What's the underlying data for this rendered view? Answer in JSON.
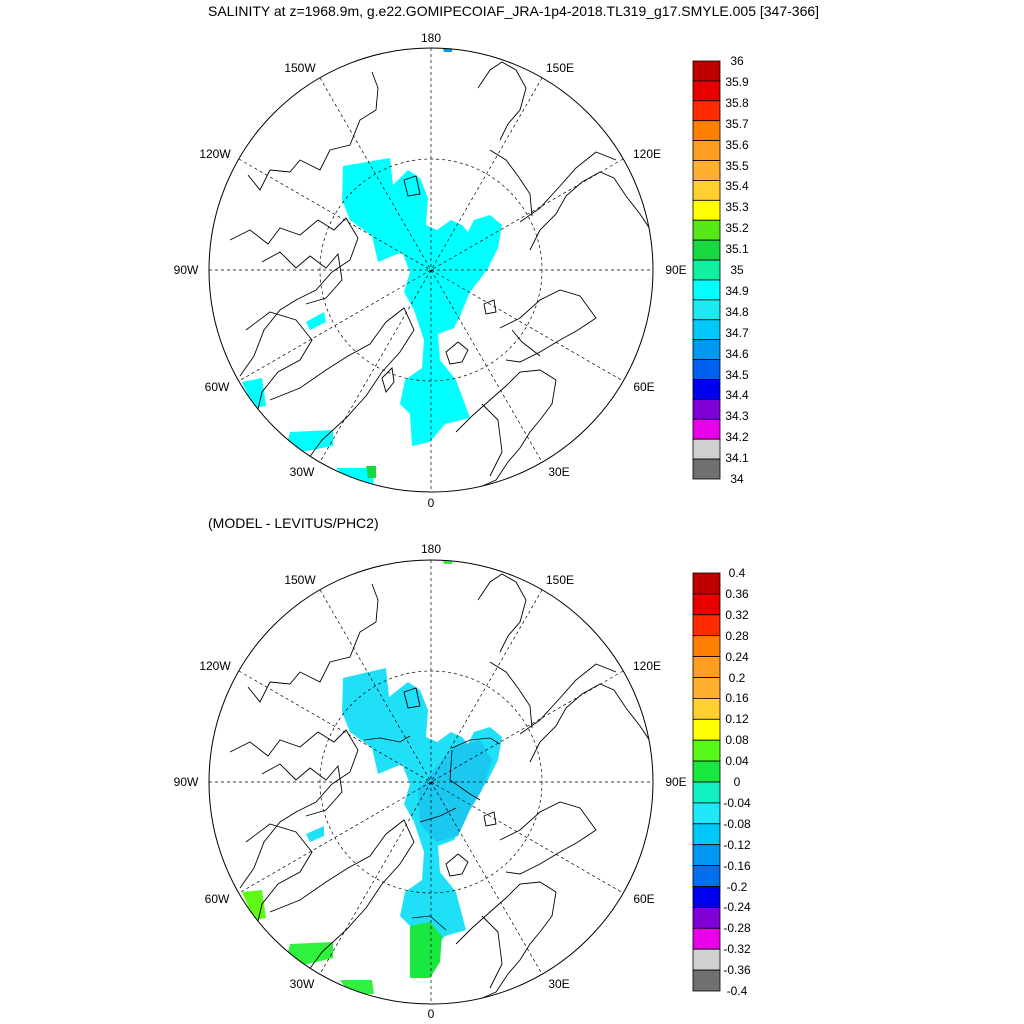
{
  "top": {
    "title": "SALINITY at z=1968.9m, g.e22.GOMIPECOIAF_JRA-1p4-2018.TL319_g17.SMYLE.005 [347-366]",
    "lon_labels": {
      "n180": "180",
      "w150": "150W",
      "e150": "150E",
      "w120": "120W",
      "e120": "120E",
      "w90": "90W",
      "e90": "90E",
      "w60": "60W",
      "e60": "60E",
      "w30": "30W",
      "e30": "30E",
      "n0": "0"
    },
    "colorbar": {
      "labels": [
        "36",
        "35.9",
        "35.8",
        "35.7",
        "35.6",
        "35.5",
        "35.4",
        "35.3",
        "35.2",
        "35.1",
        "35",
        "34.9",
        "34.8",
        "34.7",
        "34.6",
        "34.5",
        "34.4",
        "34.3",
        "34.2",
        "34.1",
        "34"
      ],
      "colors": [
        "#c00000",
        "#e80000",
        "#ff2a00",
        "#ff8000",
        "#ff9e20",
        "#ffb030",
        "#ffd030",
        "#ffff00",
        "#58e818",
        "#18d840",
        "#10f0a0",
        "#00ffff",
        "#20e8f0",
        "#00c8f8",
        "#0098f0",
        "#0060f0",
        "#0000f0",
        "#8000d8",
        "#e800e8",
        "#d0d0d0",
        "#707070"
      ]
    },
    "colors": {
      "ocean_fill": "#00ffff",
      "pacific_patch": "#0098f0",
      "green_patch": "#18d840"
    }
  },
  "bottom": {
    "title": "(MODEL - LEVITUS/PHC2)",
    "lon_labels": {
      "n180": "180",
      "w150": "150W",
      "e150": "150E",
      "w120": "120W",
      "e120": "120E",
      "w90": "90W",
      "e90": "90E",
      "w60": "60W",
      "e60": "60E",
      "w30": "30W",
      "e30": "30E",
      "n0": "0"
    },
    "colorbar": {
      "labels": [
        "0.4",
        "0.36",
        "0.32",
        "0.28",
        "0.24",
        "0.2",
        "0.16",
        "0.12",
        "0.08",
        "0.04",
        "0",
        "-0.04",
        "-0.08",
        "-0.12",
        "-0.16",
        "-0.2",
        "-0.24",
        "-0.28",
        "-0.32",
        "-0.36",
        "-0.4"
      ],
      "colors": [
        "#c00000",
        "#e80000",
        "#ff2a00",
        "#ff8000",
        "#ff9e20",
        "#ffb030",
        "#ffd030",
        "#ffff00",
        "#58f818",
        "#18e840",
        "#10f0c0",
        "#20e8f8",
        "#00c8f8",
        "#0098f0",
        "#0070f0",
        "#0000f0",
        "#8000d8",
        "#e800e8",
        "#d0d0d0",
        "#707070"
      ]
    },
    "colors": {
      "ocean_fill": "#20e0f8",
      "basin_fill": "#1ac8f0",
      "green_patch": "#30f040",
      "lime_patch": "#60f818"
    }
  }
}
